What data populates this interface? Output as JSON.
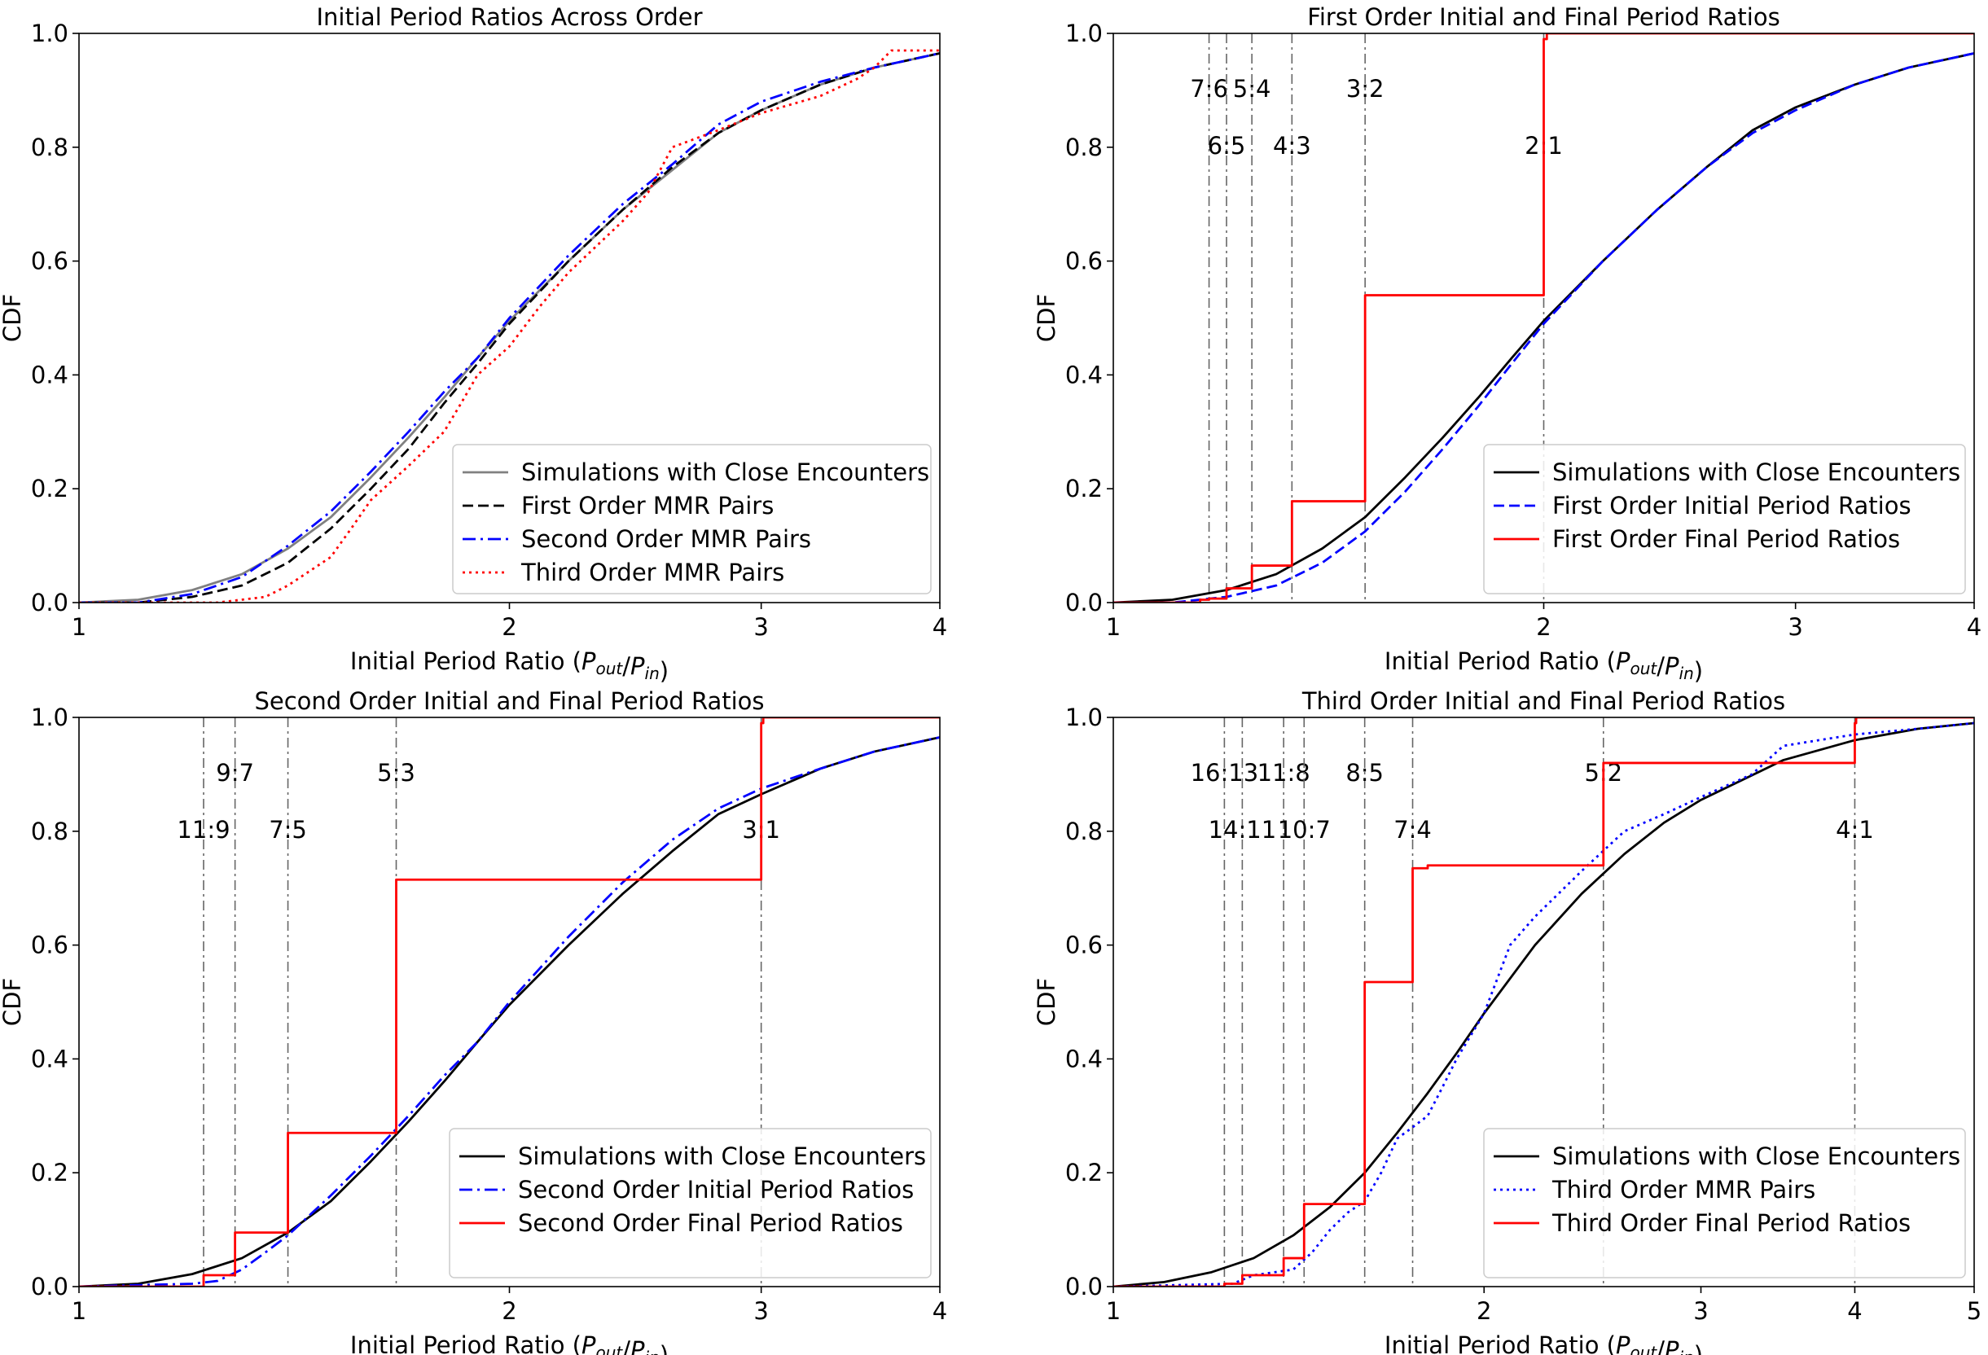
{
  "chart_data": [
    {
      "type": "line",
      "title": "Initial Period Ratios Across Order",
      "xlabel": "Initial Period Ratio",
      "xlabel_math": {
        "a": "P",
        "a_sub": "out",
        "b": "P",
        "b_sub": "in"
      },
      "ylabel": "CDF",
      "xscale": "log",
      "xlim": [
        1,
        4
      ],
      "ylim": [
        0,
        1
      ],
      "xticks": [
        1,
        2,
        3,
        4
      ],
      "yticks": [
        "0.0",
        "0.2",
        "0.4",
        "0.6",
        "0.8",
        "1.0"
      ],
      "legend_position": "lower-right",
      "annotations": [],
      "vlines": [],
      "series": [
        {
          "name": "Simulations with Close Encounters",
          "color": "#808080",
          "style": "solid",
          "x": [
            1.0,
            1.1,
            1.2,
            1.3,
            1.4,
            1.5,
            1.6,
            1.7,
            1.8,
            1.9,
            2.0,
            2.2,
            2.4,
            2.6,
            2.8,
            3.0,
            3.3,
            3.6,
            4.0
          ],
          "y": [
            0.0,
            0.005,
            0.022,
            0.05,
            0.095,
            0.15,
            0.22,
            0.29,
            0.36,
            0.43,
            0.495,
            0.6,
            0.69,
            0.76,
            0.825,
            0.865,
            0.91,
            0.94,
            0.965
          ]
        },
        {
          "name": "First Order MMR Pairs",
          "color": "#000000",
          "style": "dashed",
          "x": [
            1.0,
            1.1,
            1.2,
            1.3,
            1.4,
            1.5,
            1.6,
            1.7,
            1.8,
            1.9,
            2.0,
            2.2,
            2.4,
            2.6,
            2.8,
            3.0,
            3.3,
            3.6,
            4.0
          ],
          "y": [
            0.0,
            0.0,
            0.01,
            0.03,
            0.07,
            0.13,
            0.2,
            0.27,
            0.35,
            0.42,
            0.49,
            0.6,
            0.69,
            0.765,
            0.825,
            0.865,
            0.91,
            0.94,
            0.965
          ]
        },
        {
          "name": "Second Order MMR Pairs",
          "color": "#0000ff",
          "style": "dashdot",
          "x": [
            1.0,
            1.1,
            1.2,
            1.3,
            1.4,
            1.5,
            1.6,
            1.7,
            1.8,
            1.9,
            2.0,
            2.2,
            2.4,
            2.6,
            2.8,
            3.0,
            3.3,
            3.6,
            4.0
          ],
          "y": [
            0.0,
            0.0,
            0.015,
            0.045,
            0.1,
            0.16,
            0.23,
            0.3,
            0.37,
            0.43,
            0.5,
            0.61,
            0.7,
            0.77,
            0.84,
            0.88,
            0.915,
            0.94,
            0.965
          ]
        },
        {
          "name": "Third Order MMR Pairs",
          "color": "#ff0000",
          "style": "dotted",
          "x": [
            1.0,
            1.25,
            1.35,
            1.4,
            1.5,
            1.55,
            1.6,
            1.7,
            1.8,
            1.85,
            1.9,
            2.0,
            2.1,
            2.2,
            2.4,
            2.5,
            2.6,
            2.8,
            3.0,
            3.3,
            3.5,
            3.6,
            3.7,
            4.0
          ],
          "y": [
            0.0,
            0.0,
            0.01,
            0.03,
            0.08,
            0.13,
            0.18,
            0.24,
            0.3,
            0.35,
            0.4,
            0.45,
            0.52,
            0.58,
            0.67,
            0.72,
            0.8,
            0.83,
            0.86,
            0.89,
            0.92,
            0.94,
            0.97,
            0.97
          ]
        }
      ]
    },
    {
      "type": "line",
      "title": "First Order Initial and Final Period Ratios",
      "xlabel": "Initial Period Ratio",
      "xlabel_math": {
        "a": "P",
        "a_sub": "out",
        "b": "P",
        "b_sub": "in"
      },
      "ylabel": "CDF",
      "xscale": "log",
      "xlim": [
        1,
        4
      ],
      "ylim": [
        0,
        1
      ],
      "xticks": [
        1,
        2,
        3,
        4
      ],
      "yticks": [
        "0.0",
        "0.2",
        "0.4",
        "0.6",
        "0.8",
        "1.0"
      ],
      "legend_position": "lower-right",
      "vlines": [
        {
          "x": 1.1667,
          "label": "7:6",
          "row": 0
        },
        {
          "x": 1.2,
          "label": "6:5",
          "row": 1
        },
        {
          "x": 1.25,
          "label": "5:4",
          "row": 0
        },
        {
          "x": 1.3333,
          "label": "4:3",
          "row": 1
        },
        {
          "x": 1.5,
          "label": "3:2",
          "row": 0
        },
        {
          "x": 2.0,
          "label": "2:1",
          "row": 1
        }
      ],
      "series": [
        {
          "name": "Simulations with Close Encounters",
          "color": "#000000",
          "style": "solid",
          "x": [
            1.0,
            1.1,
            1.2,
            1.3,
            1.4,
            1.5,
            1.6,
            1.7,
            1.8,
            1.9,
            2.0,
            2.2,
            2.4,
            2.6,
            2.8,
            3.0,
            3.3,
            3.6,
            4.0
          ],
          "y": [
            0.0,
            0.005,
            0.022,
            0.05,
            0.095,
            0.15,
            0.22,
            0.29,
            0.36,
            0.43,
            0.495,
            0.6,
            0.69,
            0.765,
            0.83,
            0.87,
            0.91,
            0.94,
            0.965
          ]
        },
        {
          "name": "First Order Initial Period Ratios",
          "color": "#0000ff",
          "style": "dashed",
          "x": [
            1.0,
            1.1,
            1.2,
            1.3,
            1.4,
            1.5,
            1.6,
            1.7,
            1.8,
            1.9,
            2.0,
            2.2,
            2.4,
            2.6,
            2.8,
            3.0,
            3.3,
            3.6,
            4.0
          ],
          "y": [
            0.0,
            0.0,
            0.01,
            0.03,
            0.07,
            0.125,
            0.195,
            0.27,
            0.345,
            0.42,
            0.49,
            0.6,
            0.69,
            0.765,
            0.825,
            0.865,
            0.91,
            0.94,
            0.965
          ]
        },
        {
          "name": "First Order Final Period Ratios",
          "color": "#ff0000",
          "style": "step",
          "x": [
            1.0,
            1.15,
            1.1667,
            1.2,
            1.25,
            1.3333,
            1.5,
            2.0,
            2.01,
            4.0
          ],
          "y": [
            0.0,
            0.005,
            0.007,
            0.025,
            0.065,
            0.178,
            0.54,
            0.99,
            1.0,
            1.0
          ]
        }
      ]
    },
    {
      "type": "line",
      "title": "Second Order Initial and Final Period Ratios",
      "xlabel": "Initial Period Ratio",
      "xlabel_math": {
        "a": "P",
        "a_sub": "out",
        "b": "P",
        "b_sub": "in"
      },
      "ylabel": "CDF",
      "xscale": "log",
      "xlim": [
        1,
        4
      ],
      "ylim": [
        0,
        1
      ],
      "xticks": [
        1,
        2,
        3,
        4
      ],
      "yticks": [
        "0.0",
        "0.2",
        "0.4",
        "0.6",
        "0.8",
        "1.0"
      ],
      "legend_position": "lower-right",
      "vlines": [
        {
          "x": 1.2222,
          "label": "11:9",
          "row": 1
        },
        {
          "x": 1.2857,
          "label": "9:7",
          "row": 0
        },
        {
          "x": 1.4,
          "label": "7:5",
          "row": 1
        },
        {
          "x": 1.6667,
          "label": "5:3",
          "row": 0
        },
        {
          "x": 3.0,
          "label": "3:1",
          "row": 1
        }
      ],
      "series": [
        {
          "name": "Simulations with Close Encounters",
          "color": "#000000",
          "style": "solid",
          "x": [
            1.0,
            1.1,
            1.2,
            1.3,
            1.4,
            1.5,
            1.6,
            1.7,
            1.8,
            1.9,
            2.0,
            2.2,
            2.4,
            2.6,
            2.8,
            3.0,
            3.3,
            3.6,
            4.0
          ],
          "y": [
            0.0,
            0.005,
            0.022,
            0.05,
            0.095,
            0.15,
            0.22,
            0.29,
            0.36,
            0.43,
            0.495,
            0.6,
            0.69,
            0.765,
            0.83,
            0.865,
            0.91,
            0.94,
            0.965
          ]
        },
        {
          "name": "Second Order Initial Period Ratios",
          "color": "#0000ff",
          "style": "dashdot",
          "x": [
            1.0,
            1.2,
            1.25,
            1.3,
            1.35,
            1.4,
            1.5,
            1.6,
            1.7,
            1.8,
            1.9,
            2.0,
            2.2,
            2.4,
            2.6,
            2.8,
            3.0,
            3.3,
            3.6,
            4.0
          ],
          "y": [
            0.0,
            0.005,
            0.01,
            0.03,
            0.06,
            0.09,
            0.16,
            0.23,
            0.3,
            0.37,
            0.43,
            0.5,
            0.615,
            0.71,
            0.785,
            0.84,
            0.875,
            0.91,
            0.94,
            0.965
          ]
        },
        {
          "name": "Second Order Final Period Ratios",
          "color": "#ff0000",
          "style": "step",
          "x": [
            1.0,
            1.2222,
            1.2857,
            1.4,
            1.6667,
            3.0,
            3.01,
            4.0
          ],
          "y": [
            0.0,
            0.02,
            0.095,
            0.27,
            0.715,
            0.99,
            1.0,
            1.0
          ]
        }
      ]
    },
    {
      "type": "line",
      "title": "Third Order Initial and Final Period Ratios",
      "xlabel": "Initial Period Ratio",
      "xlabel_math": {
        "a": "P",
        "a_sub": "out",
        "b": "P",
        "b_sub": "in"
      },
      "ylabel": "CDF",
      "xscale": "log",
      "xlim": [
        1,
        5
      ],
      "ylim": [
        0,
        1
      ],
      "xticks": [
        1,
        2,
        3,
        4,
        5
      ],
      "yticks": [
        "0.0",
        "0.2",
        "0.4",
        "0.6",
        "0.8",
        "1.0"
      ],
      "legend_position": "lower-right",
      "vlines": [
        {
          "x": 1.2308,
          "label": "16:13",
          "row": 0
        },
        {
          "x": 1.2727,
          "label": "14:11",
          "row": 1
        },
        {
          "x": 1.375,
          "label": "11:8",
          "row": 0
        },
        {
          "x": 1.4286,
          "label": "10:7",
          "row": 1
        },
        {
          "x": 1.6,
          "label": "8:5",
          "row": 0
        },
        {
          "x": 1.75,
          "label": "7:4",
          "row": 1
        },
        {
          "x": 2.5,
          "label": "5:2",
          "row": 0
        },
        {
          "x": 4.0,
          "label": "4:1",
          "row": 1
        }
      ],
      "series": [
        {
          "name": "Simulations with Close Encounters",
          "color": "#000000",
          "style": "solid",
          "x": [
            1.0,
            1.1,
            1.2,
            1.3,
            1.4,
            1.5,
            1.6,
            1.7,
            1.8,
            1.9,
            2.0,
            2.2,
            2.4,
            2.6,
            2.8,
            3.0,
            3.5,
            4.0,
            4.5,
            5.0
          ],
          "y": [
            0.0,
            0.008,
            0.025,
            0.05,
            0.09,
            0.14,
            0.2,
            0.27,
            0.34,
            0.41,
            0.48,
            0.6,
            0.69,
            0.76,
            0.815,
            0.855,
            0.925,
            0.96,
            0.98,
            0.99
          ]
        },
        {
          "name": "Third Order MMR Pairs",
          "color": "#0000ff",
          "style": "dotted",
          "x": [
            1.0,
            1.25,
            1.3,
            1.4,
            1.45,
            1.5,
            1.55,
            1.6,
            1.65,
            1.7,
            1.75,
            1.8,
            1.85,
            1.9,
            2.0,
            2.1,
            2.2,
            2.4,
            2.6,
            2.8,
            3.0,
            3.3,
            3.5,
            4.0,
            4.5,
            5.0
          ],
          "y": [
            0.0,
            0.005,
            0.02,
            0.03,
            0.06,
            0.1,
            0.13,
            0.15,
            0.2,
            0.26,
            0.28,
            0.3,
            0.35,
            0.4,
            0.48,
            0.6,
            0.65,
            0.73,
            0.8,
            0.83,
            0.86,
            0.9,
            0.95,
            0.97,
            0.98,
            0.99
          ]
        },
        {
          "name": "Third Order Final Period Ratios",
          "color": "#ff0000",
          "style": "step",
          "x": [
            1.0,
            1.2308,
            1.2727,
            1.375,
            1.4286,
            1.6,
            1.75,
            1.8,
            2.5,
            4.0,
            4.01,
            5.0
          ],
          "y": [
            0.0,
            0.005,
            0.02,
            0.05,
            0.145,
            0.535,
            0.735,
            0.74,
            0.92,
            0.99,
            1.0,
            1.0
          ]
        }
      ]
    }
  ]
}
